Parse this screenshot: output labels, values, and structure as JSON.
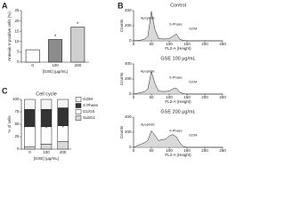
{
  "chart_data": [
    {
      "type": "bar",
      "panel": "A",
      "ylabel": "Annexin V positive cells (%)",
      "xlabel": "[GSE] (μg/mL)",
      "categories": [
        "0",
        "100",
        "200"
      ],
      "values": [
        6,
        11,
        17
      ],
      "colors": [
        "#ffffff",
        "#8c8c8c",
        "#cfcfcf"
      ],
      "ylim": [
        0,
        25
      ],
      "yticks": [
        0,
        5,
        10,
        15,
        20,
        25
      ],
      "annotations": [
        {
          "text": "*",
          "category": "100"
        },
        {
          "text": "*",
          "category": "200"
        }
      ]
    },
    {
      "type": "line",
      "panel": "B",
      "title": "Control",
      "xlabel": "FL2-A (Height)",
      "ylabel": "Counts",
      "color": "#222222",
      "labels": [
        "Apoptotic",
        "S-Phase",
        "G2/M"
      ],
      "x": [
        0,
        10,
        20,
        30,
        40,
        50,
        60,
        70,
        80,
        90,
        100,
        110,
        120,
        130,
        140,
        150,
        160,
        170,
        180,
        190,
        200,
        210,
        220,
        230,
        240,
        250
      ],
      "values": [
        0,
        5,
        10,
        20,
        60,
        390,
        150,
        30,
        25,
        25,
        30,
        60,
        90,
        20,
        5,
        0,
        0,
        0,
        0,
        0,
        0,
        0,
        0,
        0,
        0,
        0
      ],
      "xlim": [
        0,
        250
      ],
      "xticks": [
        0,
        50,
        100,
        150,
        200,
        250
      ],
      "ylim": [
        0,
        400
      ],
      "yticks": [
        0,
        200,
        400
      ]
    },
    {
      "type": "line",
      "title": "GSE 100 μg/mL",
      "xlabel": "FL2-A (Height)",
      "ylabel": "Counts",
      "color": "#222222",
      "labels": [
        "Apoptotic",
        "S-Phase",
        "G2/M"
      ],
      "x": [
        0,
        10,
        20,
        30,
        40,
        50,
        60,
        70,
        80,
        90,
        100,
        110,
        120,
        130,
        140,
        150,
        160,
        170,
        180,
        190,
        200,
        210,
        220,
        230,
        240,
        250
      ],
      "values": [
        0,
        10,
        20,
        30,
        70,
        300,
        140,
        40,
        35,
        35,
        40,
        70,
        80,
        25,
        5,
        0,
        0,
        0,
        0,
        0,
        0,
        0,
        0,
        0,
        0,
        0
      ],
      "xlim": [
        0,
        250
      ],
      "xticks": [
        0,
        50,
        100,
        150,
        200,
        250
      ],
      "ylim": [
        0,
        400
      ],
      "yticks": [
        0,
        200,
        400
      ]
    },
    {
      "type": "line",
      "title": "GSE 200 μg/mL",
      "xlabel": "FL2-A (Height)",
      "ylabel": "Counts",
      "color": "#222222",
      "labels": [
        "Apoptotic",
        "S-Phase",
        "G2/M"
      ],
      "x": [
        0,
        10,
        20,
        30,
        40,
        50,
        60,
        70,
        80,
        90,
        100,
        110,
        120,
        130,
        140,
        150,
        160,
        170,
        180,
        190,
        200,
        210,
        220,
        230,
        240,
        250
      ],
      "values": [
        0,
        20,
        40,
        60,
        90,
        220,
        160,
        90,
        100,
        110,
        150,
        170,
        140,
        60,
        10,
        0,
        0,
        0,
        0,
        0,
        0,
        0,
        0,
        0,
        0,
        0
      ],
      "xlim": [
        0,
        250
      ],
      "xticks": [
        0,
        50,
        100,
        150,
        200,
        250
      ],
      "ylim": [
        0,
        400
      ],
      "yticks": [
        0,
        200,
        400
      ]
    },
    {
      "type": "stacked",
      "panel": "C",
      "title": "Cell cycle",
      "ylabel": "% of cells",
      "xlabel": "[GSE] (μg/mL)",
      "categories": [
        "0",
        "100",
        "200"
      ],
      "series": [
        {
          "name": "SubG1",
          "color": "#d9d9d9",
          "values": [
            5,
            10,
            15
          ]
        },
        {
          "name": "G1/G0",
          "color": "#ffffff",
          "values": [
            40,
            35,
            32
          ]
        },
        {
          "name": "S Phase",
          "color": "#333333",
          "values": [
            35,
            35,
            36
          ]
        },
        {
          "name": "G2/M",
          "color": "#f4f4f4",
          "values": [
            20,
            20,
            17
          ]
        }
      ],
      "ylim": [
        0,
        100
      ],
      "yticks": [
        0,
        25,
        50,
        75,
        100
      ],
      "annotations": [
        {
          "text": "*",
          "category": "100",
          "series": "S Phase"
        },
        {
          "text": "*",
          "category": "200",
          "series": "S Phase"
        },
        {
          "text": "*",
          "category": "100",
          "series": "G1/G0"
        },
        {
          "text": "*",
          "category": "200",
          "series": "G1/G0"
        }
      ]
    }
  ]
}
